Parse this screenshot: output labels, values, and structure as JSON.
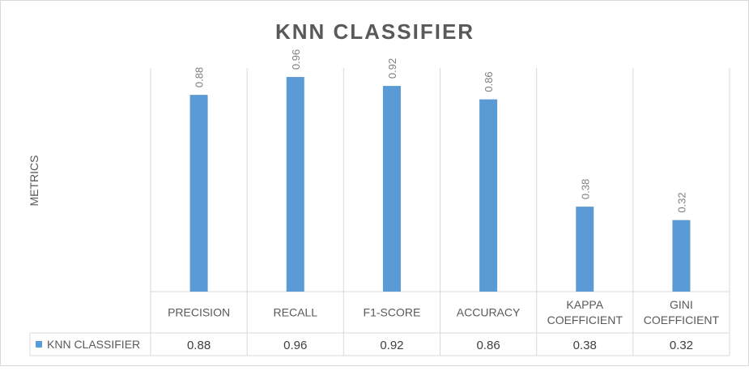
{
  "chart_data": {
    "type": "bar",
    "title": "KNN CLASSIFIER",
    "ylabel": "METRICS",
    "xlabel": "",
    "categories": [
      [
        "PRECISION"
      ],
      [
        "RECALL"
      ],
      [
        "F1-SCORE"
      ],
      [
        "ACCURACY"
      ],
      [
        "KAPPA",
        "COEFFICIENT"
      ],
      [
        "GINI",
        "COEFFICIENT"
      ]
    ],
    "series": [
      {
        "name": "KNN CLASSIFIER",
        "values": [
          0.88,
          0.96,
          0.92,
          0.86,
          0.38,
          0.32
        ],
        "value_labels": [
          "0.88",
          "0.96",
          "0.92",
          "0.86",
          "0.38",
          "0.32"
        ],
        "color": "#5b9bd5"
      }
    ],
    "ylim": [
      0,
      1
    ],
    "grid": false,
    "legend": "data-table",
    "data_labels": true,
    "data_table": true
  }
}
